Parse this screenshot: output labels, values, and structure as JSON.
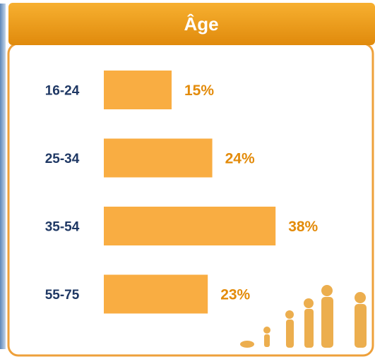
{
  "chart_data": {
    "type": "bar",
    "orientation": "horizontal",
    "title": "Âge",
    "categories": [
      "16-24",
      "25-34",
      "35-54",
      "55-75"
    ],
    "values": [
      15,
      24,
      38,
      23
    ],
    "value_labels": [
      "15%",
      "24%",
      "38%",
      "23%"
    ],
    "color": "#f9ad42"
  }
}
